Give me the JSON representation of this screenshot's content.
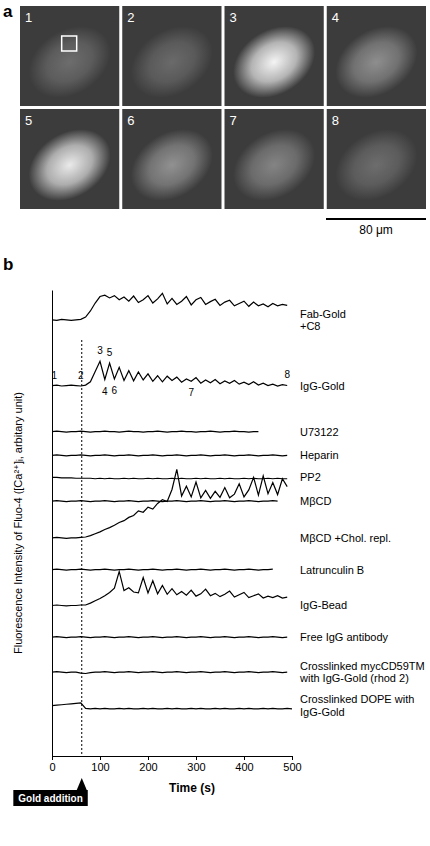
{
  "panel_a": {
    "label": "a",
    "frames": [
      "1",
      "2",
      "3",
      "4",
      "5",
      "6",
      "7",
      "8"
    ],
    "scale_bar": "80 μm"
  },
  "chart_data": {
    "type": "line",
    "panel_label": "b",
    "x_label": "Time (s)",
    "y_label": "Fluorescence Intensity of Fluo-4 ([Ca²⁺]ᵢ, arbitary unit)",
    "xlim": [
      0,
      500
    ],
    "xticks": [
      0,
      100,
      200,
      300,
      400,
      500
    ],
    "ylim": [
      0,
      100
    ],
    "yticks": [],
    "tick_labels": "x",
    "grid": false,
    "color": "#000000",
    "event": {
      "x": 62,
      "label": "Gold addition"
    },
    "annotations": {
      "series": "IgG-Gold",
      "labels": [
        {
          "text": "1",
          "x": 5,
          "y": 81.6
        },
        {
          "text": "2",
          "x": 60,
          "y": 81.6
        },
        {
          "text": "3",
          "x": 100,
          "y": 87.0
        },
        {
          "text": "4",
          "x": 110,
          "y": 78.3
        },
        {
          "text": "5",
          "x": 120,
          "y": 86.6
        },
        {
          "text": "6",
          "x": 130,
          "y": 78.4
        },
        {
          "text": "7",
          "x": 290,
          "y": 78.0
        },
        {
          "text": "8",
          "x": 490,
          "y": 81.8
        }
      ]
    },
    "x": [
      0,
      10,
      20,
      30,
      40,
      50,
      60,
      70,
      80,
      90,
      100,
      110,
      120,
      130,
      140,
      150,
      160,
      170,
      180,
      190,
      200,
      210,
      220,
      230,
      240,
      250,
      260,
      270,
      280,
      290,
      300,
      310,
      320,
      330,
      340,
      350,
      360,
      370,
      380,
      390,
      400,
      410,
      420,
      430,
      440,
      450,
      460,
      470,
      480,
      490,
      500
    ],
    "series": [
      {
        "name": "Fab-Gold",
        "annotation": "+C8",
        "values": [
          93.6,
          93.5,
          93.7,
          93.6,
          93.5,
          93.6,
          93.7,
          94.2,
          95.5,
          97.2,
          98.6,
          98.9,
          98.3,
          98.8,
          97.9,
          98.5,
          97.6,
          98.7,
          97.3,
          97.9,
          98.8,
          97.2,
          98.1,
          99.3,
          97.0,
          98.2,
          96.9,
          97.6,
          98.6,
          96.8,
          97.9,
          98.4,
          96.9,
          97.5,
          98.0,
          96.7,
          97.4,
          97.8,
          96.6,
          97.1,
          97.6,
          96.5,
          97.4,
          96.6,
          97.0,
          96.4,
          97.1,
          96.6,
          96.9,
          96.7,
          null
        ]
      },
      {
        "name": "IgG-Gold",
        "values": [
          79.5,
          79.6,
          79.4,
          79.5,
          79.6,
          79.5,
          79.4,
          79.6,
          80.3,
          82.5,
          84.7,
          80.8,
          84.3,
          80.9,
          83.4,
          80.6,
          82.7,
          80.5,
          82.4,
          80.7,
          82.0,
          80.4,
          81.6,
          80.3,
          81.5,
          80.6,
          81.3,
          80.2,
          80.9,
          80.4,
          81.2,
          80.0,
          80.7,
          80.1,
          80.8,
          79.9,
          80.5,
          80.0,
          80.6,
          79.8,
          80.2,
          79.7,
          80.3,
          79.6,
          80.0,
          79.5,
          79.8,
          79.4,
          79.7,
          79.5,
          null
        ]
      },
      {
        "name": "U73122",
        "values": [
          69.6,
          69.7,
          69.6,
          69.5,
          69.6,
          69.6,
          69.7,
          69.6,
          69.5,
          69.6,
          69.6,
          69.7,
          69.6,
          69.6,
          69.5,
          69.6,
          69.7,
          69.6,
          69.6,
          69.5,
          69.6,
          69.6,
          69.7,
          69.6,
          69.5,
          69.6,
          69.6,
          69.7,
          69.6,
          69.6,
          69.5,
          69.6,
          69.6,
          69.7,
          69.6,
          69.5,
          69.6,
          69.6,
          69.7,
          69.6,
          69.6,
          69.5,
          69.6,
          69.6,
          null,
          null,
          null,
          null,
          null,
          null,
          null
        ]
      },
      {
        "name": "Heparin",
        "values": [
          64.5,
          64.6,
          64.5,
          64.4,
          64.5,
          64.5,
          64.6,
          64.5,
          64.4,
          64.5,
          64.5,
          64.6,
          64.5,
          64.4,
          64.5,
          64.5,
          64.6,
          64.5,
          64.4,
          64.5,
          64.5,
          64.6,
          64.5,
          64.4,
          64.5,
          64.5,
          64.6,
          64.5,
          64.4,
          64.5,
          64.5,
          64.6,
          64.5,
          64.4,
          64.5,
          64.5,
          64.6,
          64.5,
          64.4,
          64.5,
          64.5,
          64.6,
          64.5,
          64.4,
          64.5,
          64.5,
          64.6,
          64.5,
          64.4,
          64.5,
          null
        ]
      },
      {
        "name": "PP2",
        "values": [
          59.8,
          59.8,
          59.7,
          59.7,
          59.7,
          59.6,
          59.6,
          59.6,
          59.6,
          59.5,
          59.6,
          59.5,
          59.6,
          59.5,
          59.5,
          59.6,
          59.5,
          59.6,
          59.5,
          59.5,
          59.6,
          59.5,
          59.6,
          59.5,
          59.5,
          59.6,
          59.5,
          59.6,
          59.5,
          59.5,
          59.6,
          59.5,
          59.6,
          59.5,
          59.5,
          59.6,
          59.5,
          59.6,
          59.5,
          59.5,
          59.6,
          59.5,
          59.6,
          59.5,
          59.5,
          59.6,
          59.5,
          59.6,
          59.5,
          59.5,
          null
        ]
      },
      {
        "name": "MβCD",
        "values": [
          54.7,
          54.8,
          54.7,
          54.6,
          54.7,
          54.7,
          54.8,
          54.7,
          54.6,
          54.7,
          54.7,
          54.8,
          54.7,
          54.6,
          54.7,
          54.7,
          54.8,
          54.7,
          54.6,
          54.7,
          54.7,
          54.8,
          54.7,
          54.6,
          54.7,
          54.7,
          54.8,
          54.7,
          54.6,
          54.7,
          54.7,
          54.8,
          54.7,
          54.6,
          54.7,
          54.7,
          54.8,
          54.7,
          54.6,
          54.7,
          54.7,
          54.8,
          54.7,
          54.6,
          54.7,
          54.7,
          54.8,
          54.7,
          null,
          null,
          null
        ]
      },
      {
        "name": "MβCD +Chol. repl.",
        "values": [
          46.8,
          46.9,
          46.8,
          46.7,
          46.8,
          46.8,
          46.9,
          47.0,
          47.3,
          47.7,
          48.1,
          48.6,
          49.0,
          49.5,
          50.1,
          50.5,
          51.2,
          51.6,
          52.6,
          52.3,
          53.4,
          53.0,
          54.2,
          55.0,
          54.6,
          57.2,
          61.5,
          55.8,
          57.9,
          55.6,
          58.8,
          55.4,
          57.0,
          55.3,
          56.8,
          55.5,
          57.6,
          55.4,
          56.2,
          58.4,
          55.6,
          57.1,
          59.8,
          56.0,
          60.1,
          56.3,
          58.7,
          56.1,
          59.5,
          57.8,
          null
        ]
      },
      {
        "name": "Latrunculin B",
        "values": [
          40.0,
          40.1,
          40.0,
          39.9,
          40.0,
          40.0,
          40.1,
          40.0,
          39.9,
          40.0,
          40.0,
          40.1,
          40.0,
          39.9,
          40.0,
          40.0,
          40.1,
          40.0,
          39.9,
          40.0,
          40.0,
          40.1,
          40.0,
          39.9,
          40.0,
          40.0,
          40.1,
          40.0,
          39.9,
          40.0,
          40.0,
          40.1,
          40.0,
          39.9,
          40.0,
          40.0,
          40.1,
          40.0,
          39.9,
          40.0,
          40.0,
          40.1,
          40.0,
          39.9,
          40.0,
          40.0,
          40.1,
          null,
          null,
          null,
          null
        ]
      },
      {
        "name": "IgG-Bead",
        "values": [
          32.3,
          32.4,
          32.3,
          32.2,
          32.3,
          32.3,
          32.4,
          32.4,
          32.8,
          33.3,
          33.8,
          34.4,
          35.1,
          36.0,
          39.6,
          35.5,
          36.1,
          35.2,
          35.0,
          38.3,
          35.0,
          37.6,
          34.8,
          36.6,
          34.7,
          35.9,
          34.6,
          35.3,
          34.5,
          35.6,
          34.3,
          34.8,
          35.8,
          34.4,
          34.9,
          34.2,
          34.7,
          35.4,
          34.1,
          34.6,
          35.1,
          34.0,
          34.4,
          34.8,
          33.9,
          34.3,
          34.0,
          34.4,
          33.9,
          34.1,
          null
        ]
      },
      {
        "name": "Free IgG antibody",
        "values": [
          25.5,
          25.6,
          25.5,
          25.4,
          25.5,
          25.5,
          25.6,
          25.5,
          25.4,
          25.5,
          25.5,
          25.6,
          25.5,
          25.4,
          25.5,
          25.5,
          25.6,
          25.5,
          25.4,
          25.5,
          25.5,
          25.6,
          25.5,
          25.4,
          25.5,
          25.5,
          25.6,
          25.5,
          25.4,
          25.5,
          25.5,
          25.6,
          25.5,
          25.4,
          25.5,
          25.5,
          25.6,
          25.5,
          25.4,
          25.5,
          25.5,
          25.6,
          25.5,
          25.4,
          25.5,
          25.5,
          25.6,
          25.5,
          25.4,
          25.5,
          null
        ]
      },
      {
        "name": "Crosslinked mycCD59TM with IgG-Gold (rhod 2)",
        "values": [
          18.0,
          18.1,
          18.0,
          17.9,
          18.0,
          18.0,
          17.8,
          17.7,
          17.9,
          18.0,
          18.0,
          18.1,
          18.0,
          17.9,
          18.0,
          18.0,
          18.1,
          18.0,
          17.9,
          18.0,
          18.0,
          18.1,
          18.0,
          17.9,
          18.0,
          18.0,
          18.1,
          18.0,
          17.9,
          18.0,
          18.0,
          18.1,
          18.0,
          17.9,
          18.0,
          18.0,
          18.1,
          18.0,
          17.9,
          18.0,
          18.0,
          18.1,
          18.0,
          17.9,
          18.0,
          18.0,
          18.1,
          18.0,
          17.9,
          18.0,
          null
        ]
      },
      {
        "name": "Crosslinked DOPE with IgG-Gold",
        "values": [
          10.8,
          10.9,
          11.0,
          11.1,
          11.2,
          11.3,
          11.4,
          10.2,
          10.1,
          10.2,
          10.1,
          10.2,
          10.1,
          10.1,
          10.2,
          10.1,
          10.2,
          10.1,
          10.1,
          10.2,
          10.1,
          10.2,
          10.1,
          10.1,
          10.2,
          10.1,
          10.2,
          10.1,
          10.1,
          10.2,
          10.1,
          10.2,
          10.1,
          10.1,
          10.2,
          10.1,
          10.2,
          10.1,
          10.1,
          10.2,
          10.1,
          10.2,
          10.1,
          10.1,
          10.2,
          10.1,
          10.2,
          10.1,
          10.1,
          10.2,
          10.1
        ]
      }
    ]
  }
}
